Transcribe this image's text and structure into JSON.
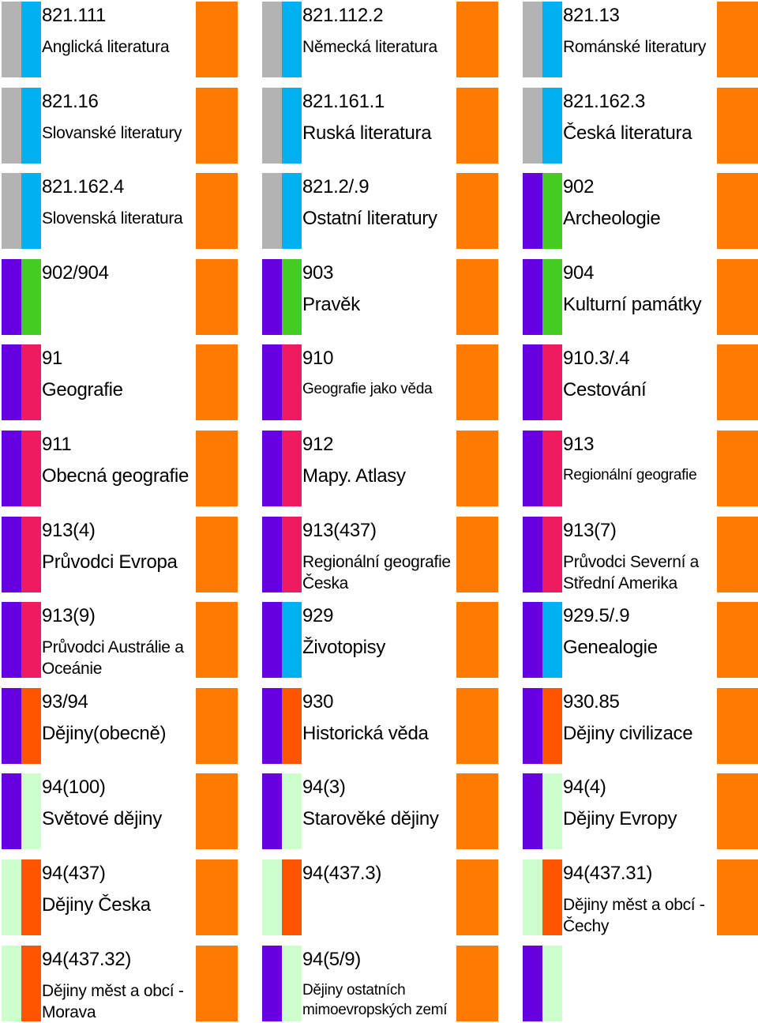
{
  "colors": {
    "gray": "#b3b3b3",
    "blue": "#00b0f0",
    "purple": "#6600e0",
    "green": "#44cc22",
    "pink": "#f01a60",
    "orange": "#ff7a00",
    "red_orange": "#ff5500",
    "pale_green": "#ccffcc"
  },
  "tiles": [
    {
      "code": "821.111",
      "name": "Anglická literatura",
      "size": "m",
      "c1": "gray",
      "c2": "blue"
    },
    {
      "code": "821.112.2",
      "name": "Německá literatura",
      "size": "m",
      "c1": "gray",
      "c2": "blue"
    },
    {
      "code": "821.13",
      "name": "Románské literatury",
      "size": "m",
      "c1": "gray",
      "c2": "blue"
    },
    {
      "code": "821.16",
      "name": "Slovanské literatury",
      "size": "m",
      "c1": "gray",
      "c2": "blue"
    },
    {
      "code": "821.161.1",
      "name": "Ruská literatura",
      "size": "l",
      "c1": "gray",
      "c2": "blue"
    },
    {
      "code": "821.162.3",
      "name": "Česká literatura",
      "size": "l",
      "c1": "gray",
      "c2": "blue"
    },
    {
      "code": "821.162.4",
      "name": "Slovenská literatura",
      "size": "m",
      "c1": "gray",
      "c2": "blue"
    },
    {
      "code": "821.2/.9",
      "name": "Ostatní literatury",
      "size": "l",
      "c1": "gray",
      "c2": "blue"
    },
    {
      "code": "902",
      "name": "Archeologie",
      "size": "l",
      "c1": "purple",
      "c2": "green"
    },
    {
      "code": "902/904",
      "name": "",
      "size": "l",
      "c1": "purple",
      "c2": "green"
    },
    {
      "code": "903",
      "name": "Pravěk",
      "size": "l",
      "c1": "purple",
      "c2": "green"
    },
    {
      "code": "904",
      "name": "Kulturní památky",
      "size": "l",
      "c1": "purple",
      "c2": "green"
    },
    {
      "code": "91",
      "name": "Geografie",
      "size": "l",
      "c1": "purple",
      "c2": "pink"
    },
    {
      "code": "910",
      "name": "Geografie jako věda",
      "size": "s",
      "c1": "purple",
      "c2": "pink"
    },
    {
      "code": "910.3/.4",
      "name": "Cestování",
      "size": "l",
      "c1": "purple",
      "c2": "pink"
    },
    {
      "code": "911",
      "name": "Obecná geografie",
      "size": "l",
      "c1": "purple",
      "c2": "pink"
    },
    {
      "code": "912",
      "name": "Mapy. Atlasy",
      "size": "l",
      "c1": "purple",
      "c2": "pink"
    },
    {
      "code": "913",
      "name": "Regionální geografie",
      "size": "s",
      "c1": "purple",
      "c2": "pink"
    },
    {
      "code": "913(4)",
      "name": "Průvodci Evropa",
      "size": "l",
      "c1": "purple",
      "c2": "pink"
    },
    {
      "code": "913(437)",
      "name": "Regionální geografie Česka",
      "size": "m",
      "c1": "purple",
      "c2": "pink"
    },
    {
      "code": "913(7)",
      "name": "Průvodci Severní a Střední Amerika",
      "size": "m",
      "c1": "purple",
      "c2": "pink"
    },
    {
      "code": "913(9)",
      "name": "Průvodci Austrálie a Oceánie",
      "size": "m",
      "c1": "purple",
      "c2": "pink"
    },
    {
      "code": "929",
      "name": "Životopisy",
      "size": "l",
      "c1": "purple",
      "c2": "blue"
    },
    {
      "code": "929.5/.9",
      "name": "Genealogie",
      "size": "l",
      "c1": "purple",
      "c2": "blue"
    },
    {
      "code": "93/94",
      "name": "Dějiny(obecně)",
      "size": "l",
      "c1": "purple",
      "c2": "red_orange"
    },
    {
      "code": "930",
      "name": "Historická věda",
      "size": "l",
      "c1": "purple",
      "c2": "red_orange"
    },
    {
      "code": "930.85",
      "name": "Dějiny civilizace",
      "size": "l",
      "c1": "purple",
      "c2": "red_orange"
    },
    {
      "code": "94(100)",
      "name": "Světové dějiny",
      "size": "l",
      "c1": "purple",
      "c2": "pale_green"
    },
    {
      "code": "94(3)",
      "name": "Starověké dějiny",
      "size": "l",
      "c1": "purple",
      "c2": "pale_green"
    },
    {
      "code": "94(4)",
      "name": "Dějiny Evropy",
      "size": "l",
      "c1": "purple",
      "c2": "pale_green"
    },
    {
      "code": "94(437)",
      "name": "Dějiny Česka",
      "size": "l",
      "c1": "pale_green",
      "c2": "red_orange"
    },
    {
      "code": "94(437.3)",
      "name": "",
      "size": "l",
      "c1": "pale_green",
      "c2": "red_orange"
    },
    {
      "code": "94(437.31)",
      "name": "Dějiny měst a obcí - Čechy",
      "size": "m",
      "c1": "pale_green",
      "c2": "red_orange"
    },
    {
      "code": "94(437.32)",
      "name": "Dějiny měst a obcí - Morava",
      "size": "m",
      "c1": "pale_green",
      "c2": "red_orange"
    },
    {
      "code": "94(5/9)",
      "name": "Dějiny ostatních mimoevropských zemí",
      "size": "s",
      "c1": "purple",
      "c2": "pale_green"
    },
    {
      "code": "",
      "name": "",
      "size": "l",
      "c1": "purple",
      "c2": "pale_green",
      "no_orange": true
    }
  ]
}
